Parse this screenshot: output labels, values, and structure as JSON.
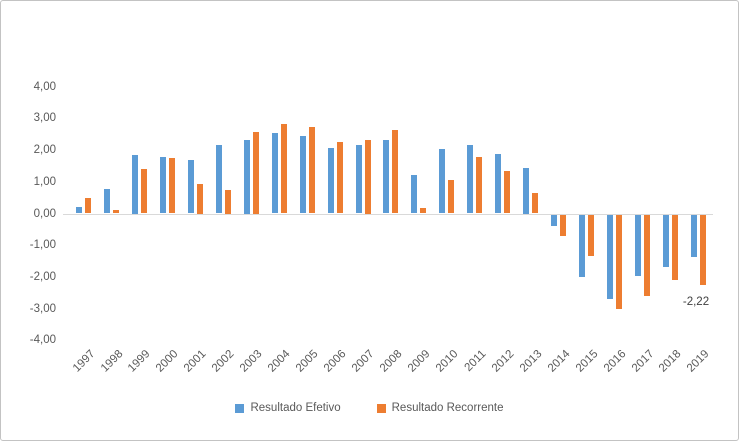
{
  "chart_data": {
    "type": "bar",
    "title": "",
    "xlabel": "",
    "ylabel": "",
    "categories": [
      "1997",
      "1998",
      "1999",
      "2000",
      "2001",
      "2002",
      "2003",
      "2004",
      "2005",
      "2006",
      "2007",
      "2008",
      "2009",
      "2010",
      "2011",
      "2012",
      "2013",
      "2014",
      "2015",
      "2016",
      "2017",
      "2018",
      "2019"
    ],
    "series": [
      {
        "name": "Resultado Efetivo",
        "color": "#5B9BD5",
        "values": [
          0.2,
          0.77,
          1.86,
          1.77,
          1.68,
          2.15,
          2.32,
          2.55,
          2.44,
          2.06,
          2.15,
          2.33,
          1.21,
          2.04,
          2.17,
          1.87,
          1.45,
          -0.35,
          -1.97,
          -2.66,
          -1.95,
          -1.66,
          -1.34
        ]
      },
      {
        "name": "Resultado Recorrente",
        "color": "#ED7D31",
        "values": [
          0.48,
          0.1,
          1.4,
          1.74,
          0.93,
          0.74,
          2.57,
          2.81,
          2.74,
          2.26,
          2.32,
          2.62,
          0.16,
          1.05,
          1.77,
          1.35,
          0.66,
          -0.67,
          -1.32,
          -2.98,
          -2.56,
          -2.08,
          -2.22
        ]
      }
    ],
    "y_axis": {
      "min": -4,
      "max": 4,
      "step": 1,
      "tick_labels": [
        "4,00",
        "3,00",
        "2,00",
        "1,00",
        "0,00",
        "-1,00",
        "-2,00",
        "-3,00",
        "-4,00"
      ]
    },
    "grid": false,
    "legend_position": "bottom",
    "annotations": [
      {
        "text": "-2,22",
        "category": "2019",
        "series": "Resultado Recorrente"
      }
    ],
    "colors": {
      "axis_line": "#d9d9d9",
      "tick_text": "#595959",
      "annotation_text": "#404040",
      "frame_border": "#c3c3c3"
    }
  }
}
